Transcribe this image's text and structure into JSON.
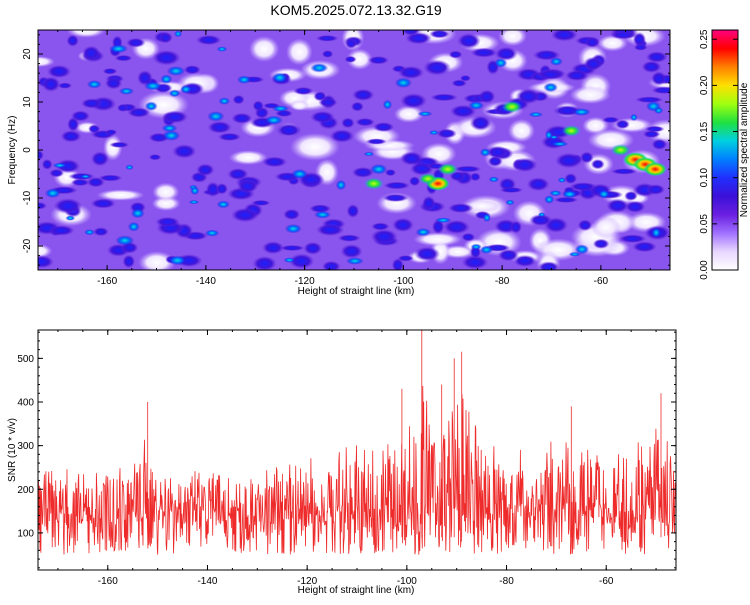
{
  "title": "KOM5.2025.072.13.32.G19",
  "colors": {
    "snr_line": "#ee2a2a",
    "colormap": [
      "#ffffff",
      "#e8d6ff",
      "#a070ff",
      "#6a1fe0",
      "#3b10d8",
      "#2030ff",
      "#0080ff",
      "#00d0e0",
      "#20e040",
      "#a0ff10",
      "#ffe000",
      "#ff8000",
      "#ff0000",
      "#ff0080"
    ]
  },
  "chart_data": [
    {
      "type": "heatmap",
      "xlabel": "Height of straight line (km)",
      "ylabel": "Frequency (Hz)",
      "xlim": [
        -174,
        -46
      ],
      "ylim": [
        -25,
        25
      ],
      "xticks": [
        -160,
        -140,
        -120,
        -100,
        -80,
        -60
      ],
      "yticks": [
        -20,
        -10,
        0,
        10,
        20
      ],
      "colorbar": {
        "label": "Normalized spectral amplitude",
        "range": [
          0.0,
          0.26
        ],
        "ticks": [
          "0.00",
          "0.05",
          "0.10",
          "0.15",
          "0.20",
          "0.25"
        ]
      },
      "hotspots": [
        {
          "x": -53,
          "y": -2,
          "value": 0.25
        },
        {
          "x": -51,
          "y": -3,
          "value": 0.24
        },
        {
          "x": -49,
          "y": -4,
          "value": 0.22
        },
        {
          "x": -56,
          "y": 0,
          "value": 0.16
        },
        {
          "x": -93,
          "y": -7,
          "value": 0.23
        },
        {
          "x": -91,
          "y": -4,
          "value": 0.17
        },
        {
          "x": -95,
          "y": -6,
          "value": 0.15
        },
        {
          "x": -106,
          "y": -7,
          "value": 0.16
        },
        {
          "x": -105,
          "y": -4,
          "value": 0.12
        },
        {
          "x": -78,
          "y": 9,
          "value": 0.17
        },
        {
          "x": -66,
          "y": 4,
          "value": 0.15
        },
        {
          "x": -147,
          "y": 3,
          "value": 0.13
        },
        {
          "x": -138,
          "y": 7,
          "value": 0.12
        },
        {
          "x": -100,
          "y": 14,
          "value": 0.12
        },
        {
          "x": -121,
          "y": -5,
          "value": 0.11
        },
        {
          "x": -171,
          "y": -9,
          "value": 0.1
        }
      ]
    },
    {
      "type": "line",
      "xlabel": "Height of straight line (km)",
      "ylabel": "SNR (10 * v/v)",
      "xlim": [
        -174,
        -46
      ],
      "ylim": [
        15,
        565
      ],
      "xticks": [
        -160,
        -140,
        -120,
        -100,
        -80,
        -60
      ],
      "yticks": [
        100,
        200,
        300,
        400,
        500
      ],
      "series": [
        {
          "baseline": 120,
          "x": [
            -174,
            -170,
            -165,
            -160,
            -155,
            -152,
            -150,
            -145,
            -140,
            -135,
            -130,
            -125,
            -120,
            -115,
            -110,
            -105,
            -100,
            -97,
            -95,
            -92,
            -89,
            -85,
            -80,
            -75,
            -70,
            -65,
            -60,
            -55,
            -50,
            -46
          ],
          "envelope_max": [
            300,
            310,
            290,
            300,
            330,
            400,
            320,
            300,
            290,
            305,
            300,
            310,
            330,
            340,
            380,
            370,
            430,
            565,
            440,
            500,
            515,
            380,
            350,
            360,
            390,
            370,
            380,
            360,
            420,
            350
          ],
          "peaks": [
            {
              "x": -97,
              "y": 565
            },
            {
              "x": -89,
              "y": 515
            },
            {
              "x": -90.5,
              "y": 500
            },
            {
              "x": -93,
              "y": 440
            },
            {
              "x": -101,
              "y": 430
            },
            {
              "x": -67,
              "y": 390
            },
            {
              "x": -152,
              "y": 400
            },
            {
              "x": -49,
              "y": 420
            }
          ]
        }
      ]
    }
  ]
}
